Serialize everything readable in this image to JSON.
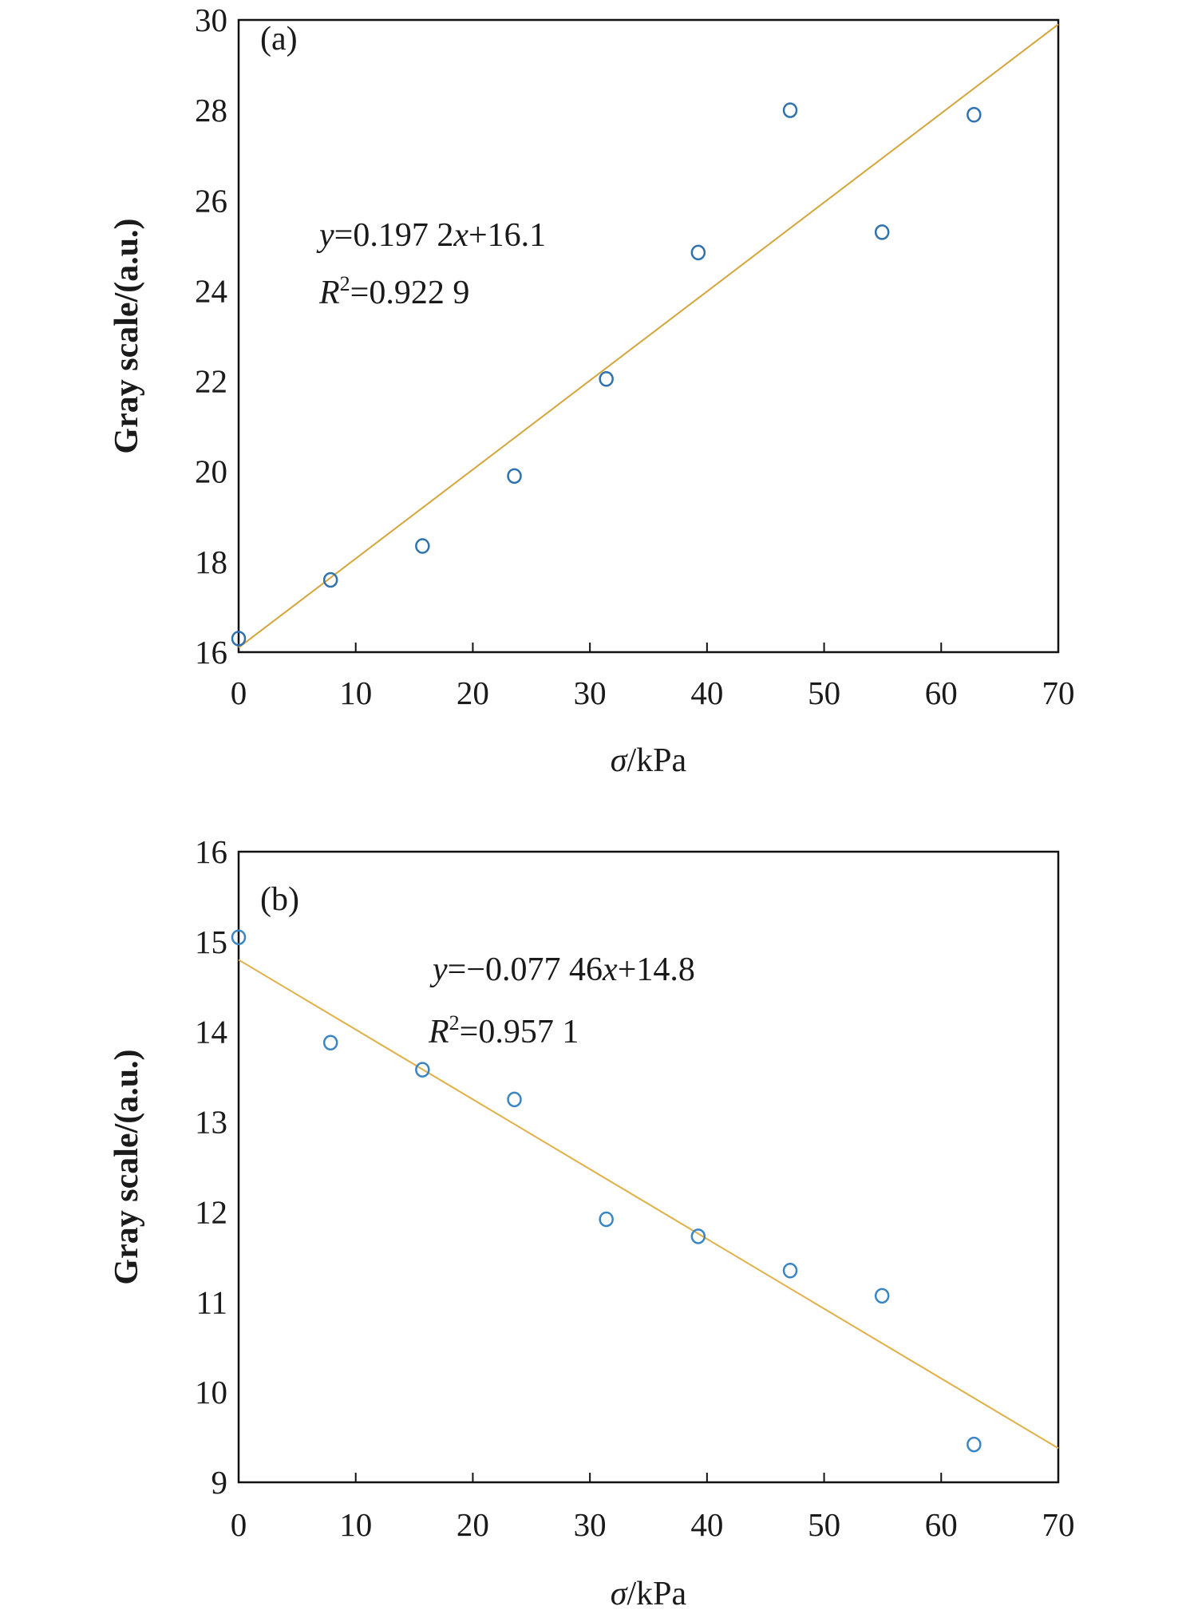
{
  "chart_data": [
    {
      "type": "scatter",
      "panel_label": "(a)",
      "xlabel_sym": "σ",
      "xlabel_unit": "/kPa",
      "ylabel": "Gray scale/(a.u.)",
      "xlim": [
        0,
        70
      ],
      "ylim": [
        16,
        30
      ],
      "xticks": [
        0,
        10,
        20,
        30,
        40,
        50,
        60,
        70
      ],
      "yticks": [
        16,
        18,
        20,
        22,
        24,
        26,
        28,
        30
      ],
      "grid": false,
      "series": [
        {
          "name": "data",
          "x": [
            0,
            7.85,
            15.7,
            23.55,
            31.4,
            39.25,
            47.1,
            54.95,
            62.8
          ],
          "y": [
            16.3,
            17.6,
            18.35,
            19.9,
            22.05,
            24.85,
            28.0,
            25.3,
            27.9
          ]
        }
      ],
      "fit": {
        "slope": 0.1972,
        "intercept": 16.1
      },
      "equation": {
        "y": "y",
        "mid": "=0.197 2",
        "x": "x",
        "tail": "+16.1"
      },
      "r2": {
        "R": "R",
        "sup": "2",
        "val": "=0.922 9"
      },
      "colors": {
        "points": "#2f72b0",
        "fit": "#d4a53a"
      }
    },
    {
      "type": "scatter",
      "panel_label": "(b)",
      "xlabel_sym": "σ",
      "xlabel_unit": "/kPa",
      "ylabel": "Gray scale/(a.u.)",
      "xlim": [
        0,
        70
      ],
      "ylim": [
        9,
        16
      ],
      "xticks": [
        0,
        10,
        20,
        30,
        40,
        50,
        60,
        70
      ],
      "yticks": [
        9,
        10,
        11,
        12,
        13,
        14,
        15,
        16
      ],
      "grid": false,
      "series": [
        {
          "name": "data",
          "x": [
            0,
            7.85,
            15.7,
            23.55,
            31.4,
            39.25,
            47.1,
            54.95,
            62.8
          ],
          "y": [
            15.05,
            13.88,
            13.58,
            13.25,
            11.92,
            11.73,
            11.35,
            11.07,
            9.42
          ]
        }
      ],
      "fit": {
        "slope": -0.07746,
        "intercept": 14.8
      },
      "equation": {
        "y": "y",
        "mid": "=−0.077 46",
        "x": "x",
        "tail": "+14.8"
      },
      "r2": {
        "R": "R",
        "sup": "2",
        "val": "=0.957 1"
      },
      "colors": {
        "points": "#3a86c4",
        "fit": "#e0b046"
      }
    }
  ]
}
